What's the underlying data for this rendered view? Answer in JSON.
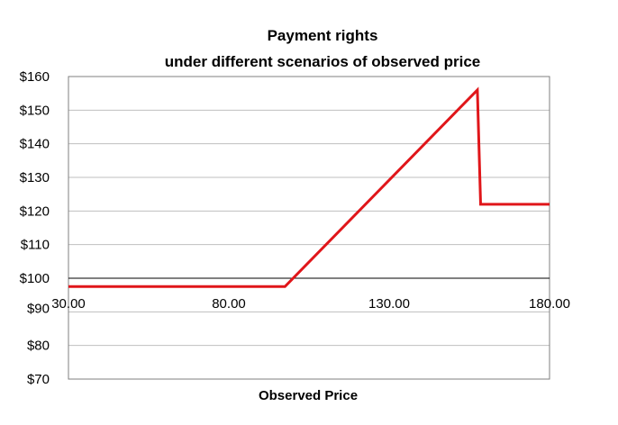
{
  "chart_data": {
    "type": "line",
    "title": "Payment rights",
    "subtitle": "under different scenarios of observed price",
    "xlabel": "Observed Price",
    "ylabel": "",
    "xlim": [
      30,
      180
    ],
    "ylim": [
      70,
      160
    ],
    "x_ticks": [
      "30.00",
      "80.00",
      "130.00",
      "180.00"
    ],
    "y_ticks": [
      "$160",
      "$150",
      "$140",
      "$130",
      "$120",
      "$110",
      "$100",
      "$90",
      "$80",
      "$70"
    ],
    "x_axis_crosses_at": 100,
    "grid": true,
    "legend": "none",
    "series": [
      {
        "color": "#e0161a",
        "x": [
          30,
          97.5,
          157.5,
          158.5,
          180
        ],
        "y": [
          97.5,
          97.5,
          156,
          122,
          122
        ]
      }
    ]
  }
}
